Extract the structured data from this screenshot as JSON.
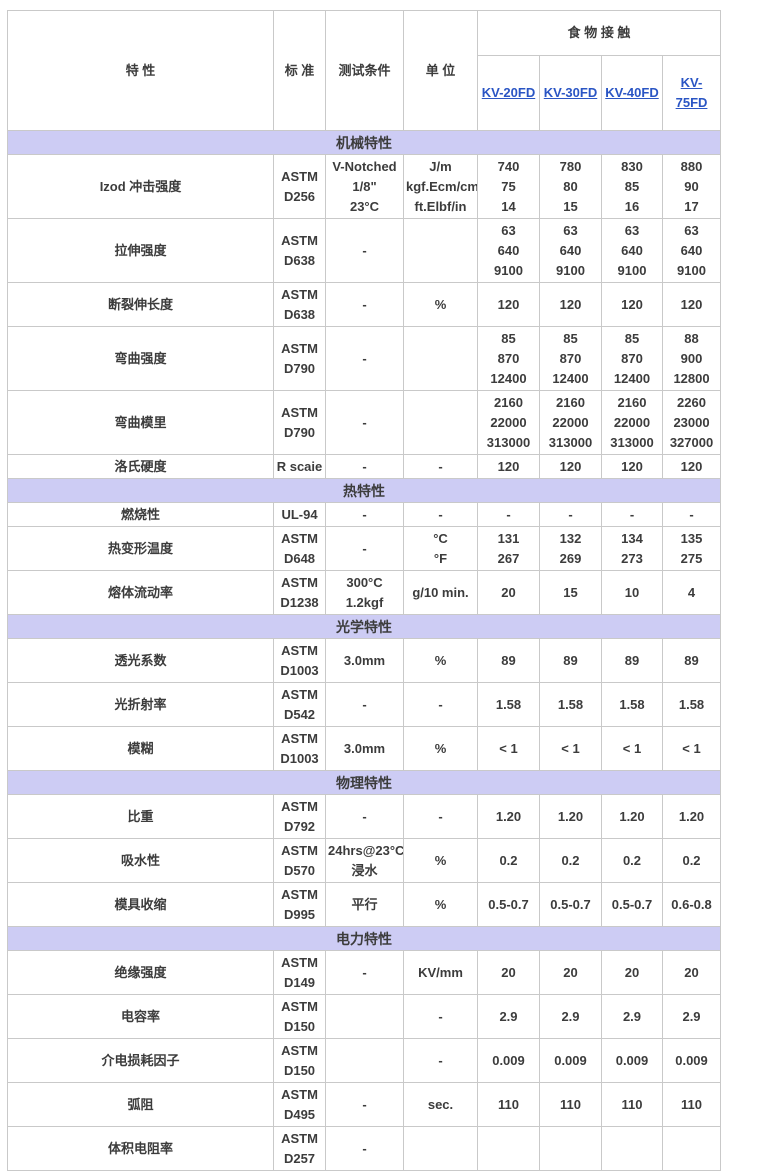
{
  "table": {
    "header": {
      "property": "特 性",
      "standard": "标 准",
      "condition": "测试条件",
      "unit": "单 位",
      "group": "食 物 接 触",
      "grades": [
        "KV-20FD",
        "KV-30FD",
        "KV-40FD",
        "KV-75FD"
      ]
    },
    "colors": {
      "border": "#c9c9c9",
      "section_bg": "#cdccf4",
      "text": "#3c3c3c",
      "link": "#2a55c4"
    },
    "sections": [
      {
        "title": "机械特性",
        "rows": [
          {
            "property": "Izod 冲击强度",
            "standard": [
              "ASTM",
              "D256"
            ],
            "condition": [
              "V-Notched",
              "1/8\"",
              "23°C"
            ],
            "unit": [
              "J/m",
              "kgf.Ecm/cm",
              "ft.Elbf/in"
            ],
            "values": [
              [
                "740",
                "75",
                "14"
              ],
              [
                "780",
                "80",
                "15"
              ],
              [
                "830",
                "85",
                "16"
              ],
              [
                "880",
                "90",
                "17"
              ]
            ]
          },
          {
            "property": "拉伸强度",
            "standard": [
              "ASTM",
              "D638"
            ],
            "condition": [
              "-"
            ],
            "unit": [],
            "values": [
              [
                "63",
                "640",
                "9100"
              ],
              [
                "63",
                "640",
                "9100"
              ],
              [
                "63",
                "640",
                "9100"
              ],
              [
                "63",
                "640",
                "9100"
              ]
            ]
          },
          {
            "property": "断裂伸长度",
            "standard": [
              "ASTM",
              "D638"
            ],
            "condition": [
              "-"
            ],
            "unit": [
              "%"
            ],
            "values": [
              [
                "120"
              ],
              [
                "120"
              ],
              [
                "120"
              ],
              [
                "120"
              ]
            ]
          },
          {
            "property": "弯曲强度",
            "standard": [
              "ASTM",
              "D790"
            ],
            "condition": [
              "-"
            ],
            "unit": [],
            "values": [
              [
                "85",
                "870",
                "12400"
              ],
              [
                "85",
                "870",
                "12400"
              ],
              [
                "85",
                "870",
                "12400"
              ],
              [
                "88",
                "900",
                "12800"
              ]
            ]
          },
          {
            "property": "弯曲模里",
            "standard": [
              "ASTM",
              "D790"
            ],
            "condition": [
              "-"
            ],
            "unit": [],
            "values": [
              [
                "2160",
                "22000",
                "313000"
              ],
              [
                "2160",
                "22000",
                "313000"
              ],
              [
                "2160",
                "22000",
                "313000"
              ],
              [
                "2260",
                "23000",
                "327000"
              ]
            ]
          },
          {
            "property": "洛氏硬度",
            "standard": [
              "R scaie"
            ],
            "condition": [
              "-"
            ],
            "unit": [
              "-"
            ],
            "values": [
              [
                "120"
              ],
              [
                "120"
              ],
              [
                "120"
              ],
              [
                "120"
              ]
            ]
          }
        ]
      },
      {
        "title": "热特性",
        "rows": [
          {
            "property": "燃烧性",
            "standard": [
              "UL-94"
            ],
            "condition": [
              "-"
            ],
            "unit": [
              "-"
            ],
            "values": [
              [
                "-"
              ],
              [
                "-"
              ],
              [
                "-"
              ],
              [
                "-"
              ]
            ]
          },
          {
            "property": "热变形温度",
            "standard": [
              "ASTM",
              "D648"
            ],
            "condition": [
              "-"
            ],
            "unit": [
              "°C",
              "°F"
            ],
            "values": [
              [
                "131",
                "267"
              ],
              [
                "132",
                "269"
              ],
              [
                "134",
                "273"
              ],
              [
                "135",
                "275"
              ]
            ]
          },
          {
            "property": "熔体流动率",
            "standard": [
              "ASTM",
              "D1238"
            ],
            "condition": [
              "300°C",
              "1.2kgf"
            ],
            "unit": [
              "g/10 min."
            ],
            "values": [
              [
                "20"
              ],
              [
                "15"
              ],
              [
                "10"
              ],
              [
                "4"
              ]
            ]
          }
        ]
      },
      {
        "title": "光学特性",
        "rows": [
          {
            "property": "透光系数",
            "standard": [
              "ASTM",
              "D1003"
            ],
            "condition": [
              "3.0mm"
            ],
            "unit": [
              "%"
            ],
            "values": [
              [
                "89"
              ],
              [
                "89"
              ],
              [
                "89"
              ],
              [
                "89"
              ]
            ]
          },
          {
            "property": "光折射率",
            "standard": [
              "ASTM",
              "D542"
            ],
            "condition": [
              "-"
            ],
            "unit": [
              "-"
            ],
            "values": [
              [
                "1.58"
              ],
              [
                "1.58"
              ],
              [
                "1.58"
              ],
              [
                "1.58"
              ]
            ]
          },
          {
            "property": "模糊",
            "standard": [
              "ASTM",
              "D1003"
            ],
            "condition": [
              "3.0mm"
            ],
            "unit": [
              "%"
            ],
            "values": [
              [
                "< 1"
              ],
              [
                "< 1"
              ],
              [
                "< 1"
              ],
              [
                "< 1"
              ]
            ]
          }
        ]
      },
      {
        "title": "物理特性",
        "rows": [
          {
            "property": "比重",
            "standard": [
              "ASTM",
              "D792"
            ],
            "condition": [
              "-"
            ],
            "unit": [
              "-"
            ],
            "values": [
              [
                "1.20"
              ],
              [
                "1.20"
              ],
              [
                "1.20"
              ],
              [
                "1.20"
              ]
            ]
          },
          {
            "property": "吸水性",
            "standard": [
              "ASTM",
              "D570"
            ],
            "condition": [
              "24hrs@23°C",
              "浸水"
            ],
            "unit": [
              "%"
            ],
            "values": [
              [
                "0.2"
              ],
              [
                "0.2"
              ],
              [
                "0.2"
              ],
              [
                "0.2"
              ]
            ]
          },
          {
            "property": "模具收缩",
            "standard": [
              "ASTM",
              "D995"
            ],
            "condition": [
              "平行"
            ],
            "unit": [
              "%"
            ],
            "values": [
              [
                "0.5-0.7"
              ],
              [
                "0.5-0.7"
              ],
              [
                "0.5-0.7"
              ],
              [
                "0.6-0.8"
              ]
            ]
          }
        ]
      },
      {
        "title": "电力特性",
        "rows": [
          {
            "property": "绝缘强度",
            "standard": [
              "ASTM",
              "D149"
            ],
            "condition": [
              "-"
            ],
            "unit": [
              "KV/mm"
            ],
            "values": [
              [
                "20"
              ],
              [
                "20"
              ],
              [
                "20"
              ],
              [
                "20"
              ]
            ]
          },
          {
            "property": "电容率",
            "standard": [
              "ASTM",
              "D150"
            ],
            "condition": [],
            "unit": [
              "-"
            ],
            "values": [
              [
                "2.9"
              ],
              [
                "2.9"
              ],
              [
                "2.9"
              ],
              [
                "2.9"
              ]
            ]
          },
          {
            "property": "介电损耗因子",
            "standard": [
              "ASTM",
              "D150"
            ],
            "condition": [],
            "unit": [
              "-"
            ],
            "values": [
              [
                "0.009"
              ],
              [
                "0.009"
              ],
              [
                "0.009"
              ],
              [
                "0.009"
              ]
            ]
          },
          {
            "property": "弧阻",
            "standard": [
              "ASTM",
              "D495"
            ],
            "condition": [
              "-"
            ],
            "unit": [
              "sec."
            ],
            "values": [
              [
                "110"
              ],
              [
                "110"
              ],
              [
                "110"
              ],
              [
                "110"
              ]
            ]
          },
          {
            "property": "体积电阻率",
            "standard": [
              "ASTM",
              "D257"
            ],
            "condition": [
              "-"
            ],
            "unit": [],
            "values": [
              [],
              [],
              [],
              []
            ]
          }
        ]
      }
    ]
  }
}
